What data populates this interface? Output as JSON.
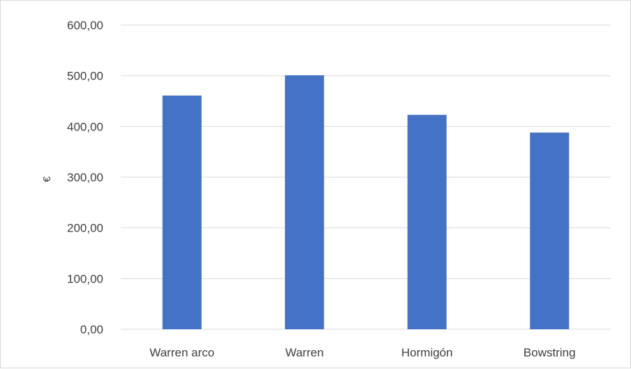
{
  "chart_data": {
    "type": "bar",
    "title": "",
    "xlabel": "",
    "ylabel": "€",
    "categories": [
      "Warren arco",
      "Warren",
      "Hormigón",
      "Bowstring"
    ],
    "values": [
      461,
      501,
      423,
      388
    ],
    "ylim": [
      0,
      600
    ],
    "yticks": [
      "0,00",
      "100,00",
      "200,00",
      "300,00",
      "400,00",
      "500,00",
      "600,00"
    ],
    "ytick_values": [
      0,
      100,
      200,
      300,
      400,
      500,
      600
    ],
    "grid": true,
    "legend": "none",
    "bar_color": "#4472c4",
    "grid_color": "#d9d9d9"
  }
}
